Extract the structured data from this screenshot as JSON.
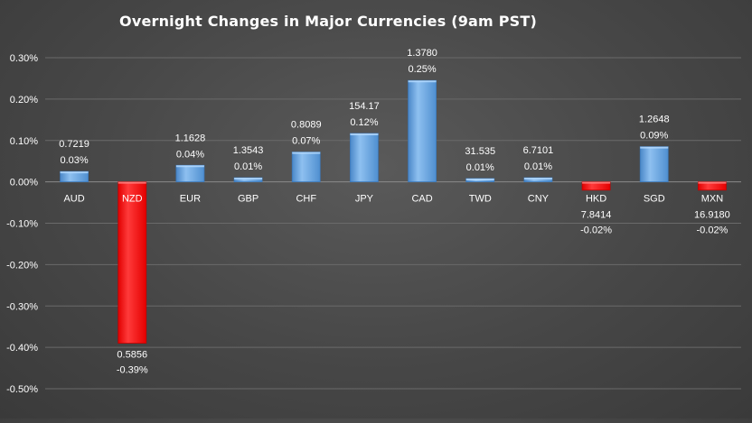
{
  "chart_data": {
    "type": "bar",
    "title": "Overnight Changes in Major Currencies (9am PST)",
    "xlabel": "",
    "ylabel": "",
    "ylim": [
      -0.5,
      0.3
    ],
    "yticks": [
      "0.30%",
      "0.20%",
      "0.10%",
      "0.00%",
      "-0.10%",
      "-0.20%",
      "-0.30%",
      "-0.40%",
      "-0.50%"
    ],
    "ytick_values": [
      0.3,
      0.2,
      0.1,
      0.0,
      -0.1,
      -0.2,
      -0.3,
      -0.4,
      -0.5
    ],
    "grid": true,
    "categories": [
      "AUD",
      "NZD",
      "EUR",
      "GBP",
      "CHF",
      "JPY",
      "CAD",
      "TWD",
      "CNY",
      "HKD",
      "SGD",
      "MXN"
    ],
    "values": [
      0.025,
      -0.39,
      0.04,
      0.01,
      0.072,
      0.117,
      0.245,
      0.008,
      0.01,
      -0.02,
      0.085,
      -0.02
    ],
    "rates": [
      "0.7219",
      "0.5856",
      "1.1628",
      "1.3543",
      "0.8089",
      "154.17",
      "1.3780",
      "31.535",
      "6.7101",
      "7.8414",
      "1.2648",
      "16.9180"
    ],
    "pct_labels": [
      "0.03%",
      "-0.39%",
      "0.04%",
      "0.01%",
      "0.07%",
      "0.12%",
      "0.25%",
      "0.01%",
      "0.01%",
      "-0.02%",
      "0.09%",
      "-0.02%"
    ],
    "colors": {
      "positive": "#5b9bd5",
      "positive_light": "#8ec0f0",
      "negative": "#ff0000",
      "negative_light": "#ff5a5a",
      "grid": "#6a6a6a",
      "text": "#ffffff"
    }
  }
}
